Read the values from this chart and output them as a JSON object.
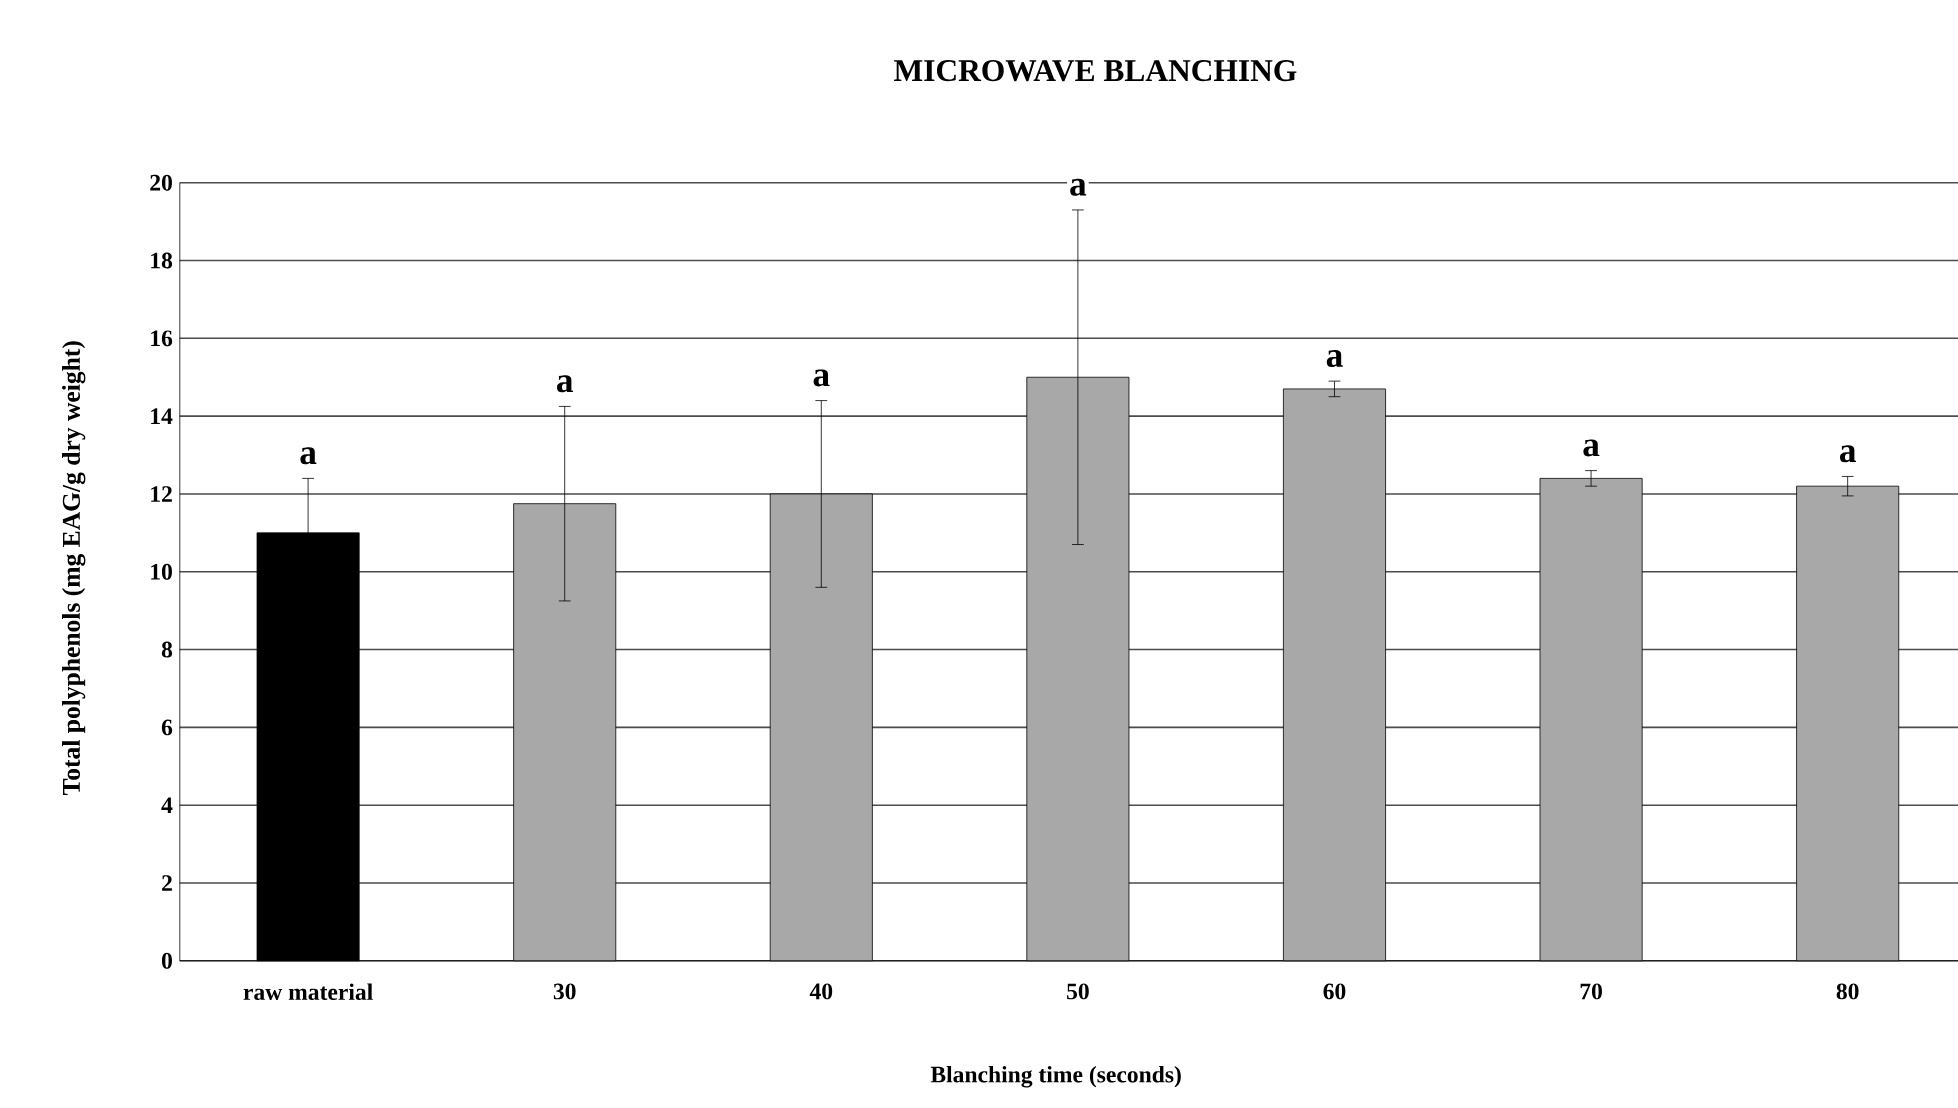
{
  "chart_data": {
    "type": "bar",
    "title": "MICROWAVE BLANCHING",
    "xlabel": "Blanching time (seconds)",
    "ylabel": "Total polyphenols (mg EAG/g dry weight)",
    "categories": [
      "raw material",
      "30",
      "40",
      "50",
      "60",
      "70",
      "80"
    ],
    "values": [
      11.0,
      11.75,
      12.0,
      15.0,
      14.7,
      12.4,
      12.2
    ],
    "errors": [
      1.4,
      2.5,
      2.4,
      4.3,
      0.2,
      0.2,
      0.25
    ],
    "colors": [
      "#000000",
      "#a8a8a8",
      "#a8a8a8",
      "#a8a8a8",
      "#a8a8a8",
      "#a8a8a8",
      "#a8a8a8"
    ],
    "annotations": [
      "a",
      "a",
      "a",
      "a",
      "a",
      "a",
      "a"
    ],
    "ylim": [
      0,
      20
    ],
    "yticks": [
      0,
      2,
      4,
      6,
      8,
      10,
      12,
      14,
      16,
      18,
      20
    ],
    "grid": "y"
  }
}
